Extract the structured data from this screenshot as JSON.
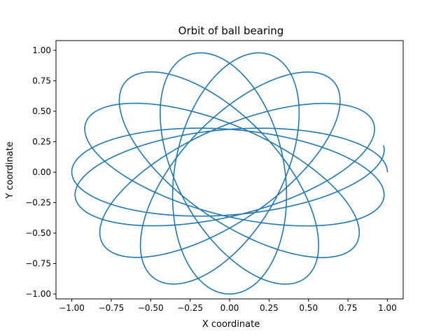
{
  "chart_data": {
    "type": "line",
    "title": "Orbit of ball bearing",
    "xlabel": "X coordinate",
    "ylabel": "Y coordinate",
    "xlim": [
      -1.1,
      1.1
    ],
    "ylim": [
      -1.04,
      1.08
    ],
    "xticks": [
      -1.0,
      -0.75,
      -0.5,
      -0.25,
      0.0,
      0.25,
      0.5,
      0.75,
      1.0
    ],
    "yticks": [
      -1.0,
      -0.75,
      -0.5,
      -0.25,
      0.0,
      0.25,
      0.5,
      0.75,
      1.0
    ],
    "xtick_labels": [
      "−1.00",
      "−0.75",
      "−0.50",
      "−0.25",
      "0.00",
      "0.25",
      "0.50",
      "0.75",
      "1.00"
    ],
    "ytick_labels": [
      "−1.00",
      "−0.75",
      "−0.50",
      "−0.25",
      "0.00",
      "0.25",
      "0.50",
      "0.75",
      "1.00"
    ],
    "grid": false,
    "line_color": "#1f77b4",
    "orbit": {
      "semi_major_axis": 1.0,
      "semi_minor_axis": 0.35,
      "ellipse_center": [
        0.18,
        0.0
      ],
      "start_point": [
        1.0,
        0.0
      ],
      "end_point": [
        0.95,
        0.22
      ],
      "precession_degrees_per_revolution": 25.7,
      "revolutions": 7.5
    }
  }
}
